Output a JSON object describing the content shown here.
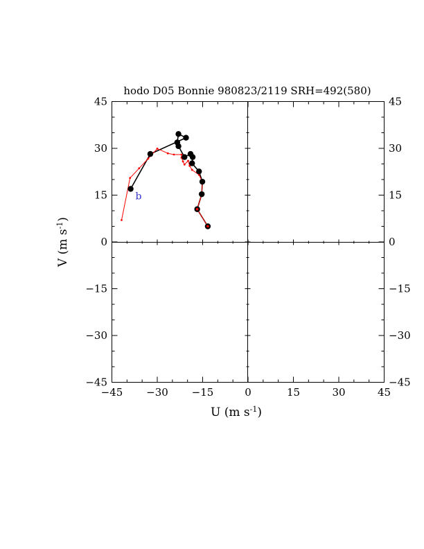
{
  "chart_data": {
    "type": "scatter",
    "title": "hodo D05 Bonnie 980823/2119 SRH=492(580)",
    "xlabel": "U (m s",
    "ylabel": "V (m s",
    "unit_exponent": "-1",
    "xlim": [
      -45,
      45
    ],
    "ylim": [
      -45,
      45
    ],
    "ticks": [
      "−45",
      "−30",
      "−15",
      "0",
      "15",
      "30",
      "45"
    ],
    "tick_values": [
      -45,
      -30,
      -15,
      0,
      15,
      30,
      45
    ],
    "grid": false,
    "quadrant_lines": true,
    "annotation": {
      "text": "b",
      "x": -36.2,
      "y": 14.8,
      "color": "#3333cc"
    },
    "series": [
      {
        "role": "hodograph",
        "color": "#000000",
        "x": [
          -13.3,
          -16.8,
          -15.3,
          -15.1,
          -16.2,
          -18.5,
          -18.3,
          -19.0,
          -21.0,
          -23.0,
          -23.4,
          -23.0,
          -20.5,
          -32.3,
          -38.8
        ],
        "y": [
          5.0,
          10.5,
          15.3,
          19.3,
          22.6,
          25.2,
          27.2,
          28.2,
          27.2,
          30.7,
          31.9,
          34.6,
          33.4,
          28.2,
          17.0
        ]
      },
      {
        "role": "storm-motion",
        "color": "#ff0000",
        "x": [
          -13.3,
          -16.8,
          -15.3,
          -15.1,
          -16.2,
          -18.5,
          -19.3,
          -19.8,
          -21.0,
          -21.5,
          -22.0,
          -22.0,
          -24.5,
          -26.5,
          -30.0,
          -33.0,
          -36.0,
          -39.0,
          -41.8
        ],
        "y": [
          5.0,
          10.5,
          15.3,
          19.3,
          21.5,
          23.1,
          24.4,
          26.0,
          24.8,
          25.8,
          27.0,
          28.0,
          28.0,
          28.4,
          29.9,
          26.7,
          23.6,
          20.5,
          7.0
        ]
      }
    ]
  }
}
